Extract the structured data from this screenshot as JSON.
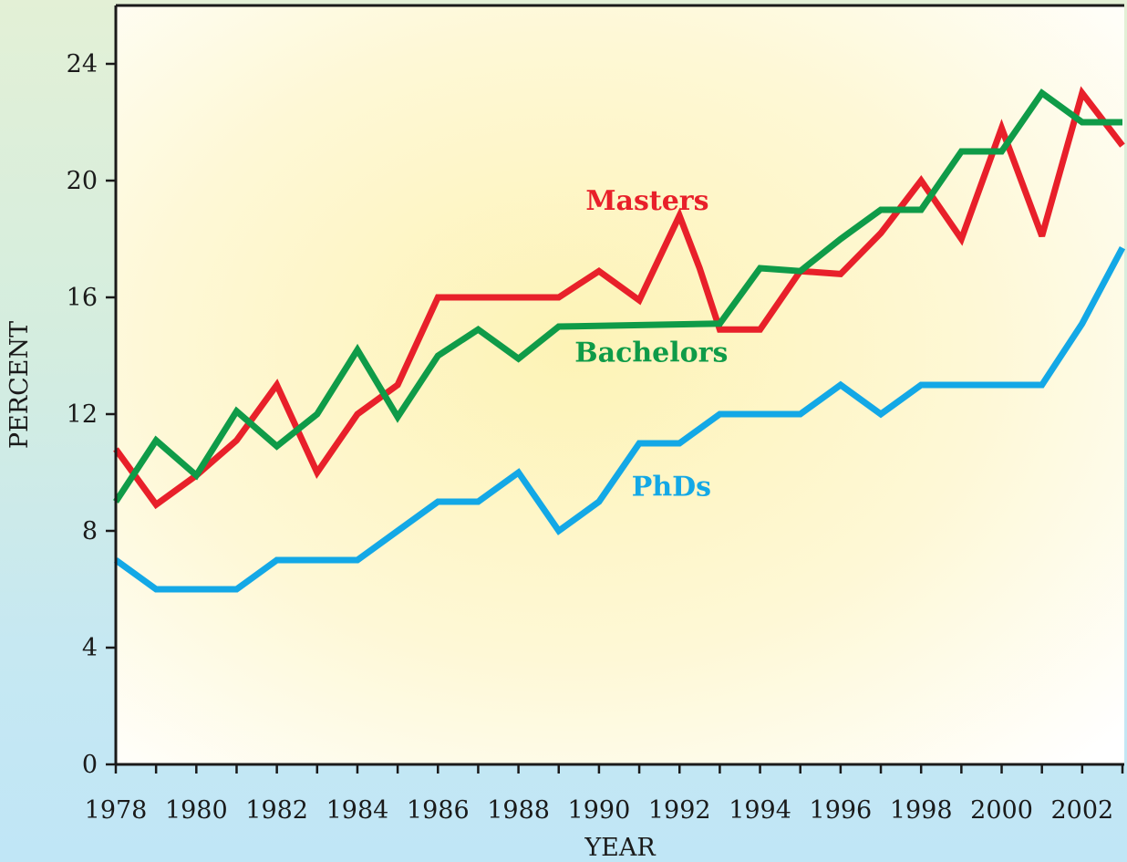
{
  "chart_data": {
    "type": "line",
    "title": "",
    "xlabel": "YEAR",
    "ylabel": "PERCENT",
    "xlim": [
      1978,
      2003
    ],
    "ylim": [
      0,
      26
    ],
    "x_ticks": [
      1978,
      1980,
      1982,
      1984,
      1986,
      1988,
      1990,
      1992,
      1994,
      1996,
      1998,
      2000,
      2002
    ],
    "y_ticks": [
      0,
      4,
      8,
      12,
      16,
      20,
      24
    ],
    "x_tick_labels": [
      "1978",
      "1980",
      "1982",
      "1984",
      "1986",
      "1988",
      "1990",
      "1992",
      "1994",
      "1996",
      "1998",
      "2000",
      "2002"
    ],
    "y_tick_labels": [
      "0",
      "4",
      "8",
      "12",
      "16",
      "20",
      "24"
    ],
    "grid": false,
    "legend": "none",
    "series": [
      {
        "name": "Masters",
        "color": "#e8202a",
        "x": [
          1978,
          1979,
          1980,
          1981,
          1982,
          1983,
          1984,
          1985,
          1986,
          1987,
          1988,
          1989,
          1990,
          1991,
          1992,
          1992.5,
          1993,
          1994,
          1995,
          1996,
          1997,
          1998,
          1999,
          2000,
          2001,
          2002,
          2003
        ],
        "y": [
          10.8,
          8.9,
          9.9,
          11.1,
          13.0,
          10.0,
          12.0,
          13.0,
          16.0,
          16.0,
          16.0,
          16.0,
          16.9,
          15.9,
          18.8,
          17.0,
          14.9,
          14.9,
          16.9,
          16.8,
          18.2,
          20.0,
          18.0,
          21.8,
          18.1,
          23.0,
          21.2
        ]
      },
      {
        "name": "Bachelors",
        "color": "#0f9b48",
        "x": [
          1978,
          1979,
          1980,
          1981,
          1982,
          1983,
          1984,
          1985,
          1986,
          1987,
          1988,
          1989,
          1993,
          1994,
          1995,
          1996,
          1997,
          1998,
          1999,
          2000,
          2001,
          2002,
          2003
        ],
        "y": [
          9.0,
          11.1,
          9.9,
          12.1,
          10.9,
          12.0,
          14.2,
          11.9,
          14.0,
          14.9,
          13.9,
          15.0,
          15.1,
          17.0,
          16.9,
          18.0,
          19.0,
          19.0,
          21.0,
          21.0,
          23.0,
          22.0,
          22.0
        ]
      },
      {
        "name": "PhDs",
        "color": "#13a8e6",
        "x": [
          1978,
          1979,
          1980,
          1981,
          1982,
          1983,
          1984,
          1985,
          1986,
          1987,
          1988,
          1989,
          1990,
          1991,
          1992,
          1993,
          1994,
          1995,
          1996,
          1997,
          1998,
          1999,
          2000,
          2001,
          2002,
          2003
        ],
        "y": [
          7.0,
          6.0,
          6.0,
          6.0,
          7.0,
          7.0,
          7.0,
          8.0,
          9.0,
          9.0,
          10.0,
          8.0,
          9.0,
          11.0,
          11.0,
          12.0,
          12.0,
          12.0,
          13.0,
          12.0,
          13.0,
          13.0,
          13.0,
          13.0,
          15.1,
          17.7
        ]
      }
    ],
    "annotations": [
      {
        "text": "Masters",
        "series": "Masters",
        "color": "#e8202a",
        "x": 1991.2,
        "y": 19.0
      },
      {
        "text": "Bachelors",
        "series": "Bachelors",
        "color": "#0f9b48",
        "x": 1991.3,
        "y": 13.8
      },
      {
        "text": "PhDs",
        "series": "PhDs",
        "color": "#13a8e6",
        "x": 1991.8,
        "y": 9.2
      }
    ]
  }
}
